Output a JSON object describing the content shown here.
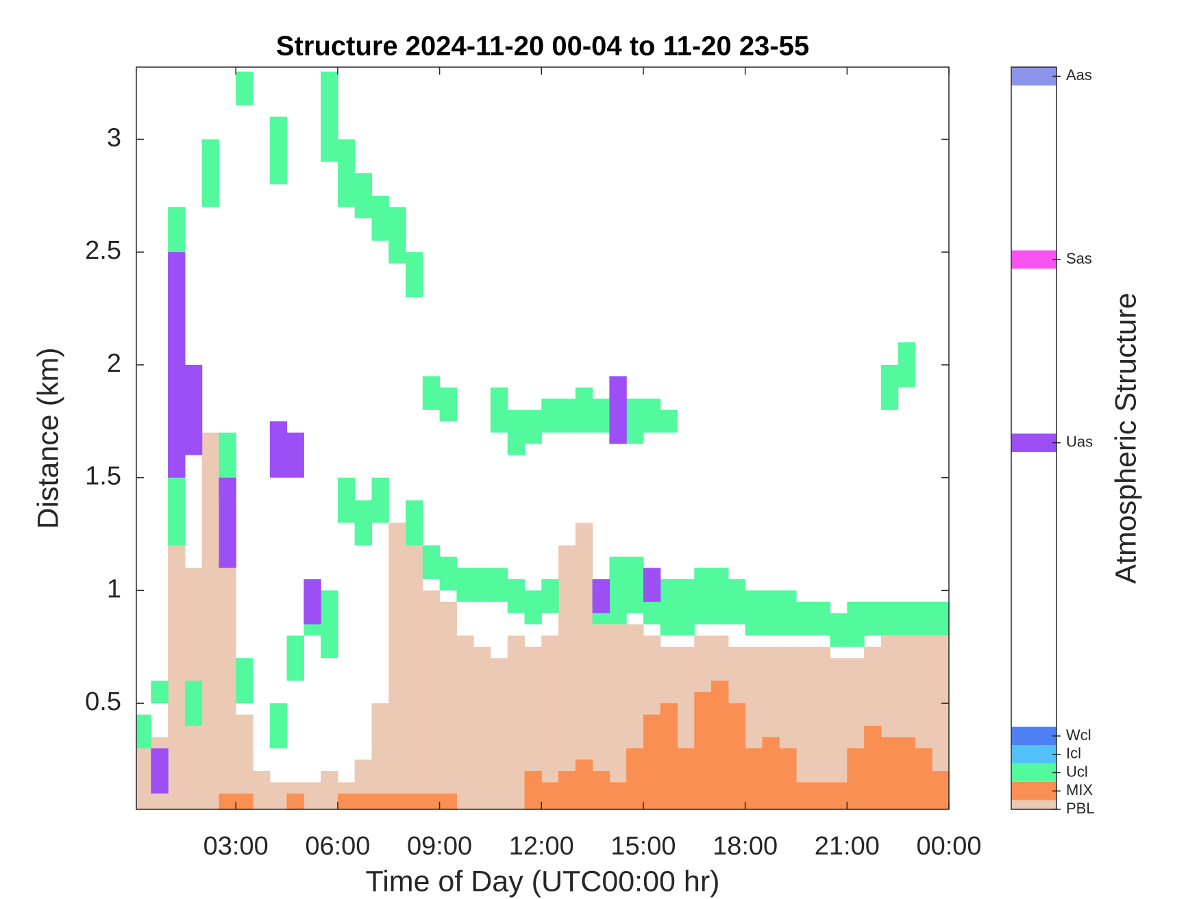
{
  "chart_data": {
    "type": "structure",
    "title": "Structure 2024-11-20 00-04 to 11-20 23-55",
    "xlabel": "Time of Day (UTC00:00 hr)",
    "ylabel": "Distance (km)",
    "colorbar_label": "Atmospheric Structure",
    "xlim": [
      0.07,
      24
    ],
    "ylim": [
      0.03,
      3.32
    ],
    "clim": [
      0,
      40.5
    ],
    "xticks": [
      {
        "value": 3,
        "label": "03:00"
      },
      {
        "value": 6,
        "label": "06:00"
      },
      {
        "value": 9,
        "label": "09:00"
      },
      {
        "value": 12,
        "label": "12:00"
      },
      {
        "value": 15,
        "label": "15:00"
      },
      {
        "value": 18,
        "label": "18:00"
      },
      {
        "value": 21,
        "label": "21:00"
      },
      {
        "value": 24,
        "label": "00:00"
      }
    ],
    "yticks": [
      0.5,
      1,
      1.5,
      2,
      2.5,
      3
    ],
    "x": [
      0.25,
      0.75,
      1.25,
      1.75,
      2.25,
      2.75,
      3.25,
      3.75,
      4.25,
      4.75,
      5.25,
      5.75,
      6.25,
      6.75,
      7.25,
      7.75,
      8.25,
      8.75,
      9.25,
      9.75,
      10.25,
      10.75,
      11.25,
      11.75,
      12.25,
      12.75,
      13.25,
      13.75,
      14.25,
      14.75,
      15.25,
      15.75,
      16.25,
      16.75,
      17.25,
      17.75,
      18.25,
      18.75,
      19.25,
      19.75,
      20.25,
      20.75,
      21.25,
      21.75,
      22.25,
      22.75,
      23.25,
      23.75
    ],
    "series": [
      {
        "name": "PBL",
        "color": "#ecc9b4",
        "level": 0,
        "layers": [
          {
            "values": [
              0.35,
              0.35,
              2.5,
              1.1,
              1.7,
              1.6,
              0.45,
              0.2,
              0.15,
              0.15,
              0.15,
              0.2,
              0.15,
              0.25,
              0.5,
              1.3,
              1.2,
              1.0,
              0.95,
              0.8,
              0.75,
              0.7,
              0.8,
              0.75,
              0.8,
              1.2,
              1.3,
              0.85,
              0.85,
              0.85,
              0.8,
              0.75,
              0.75,
              0.8,
              0.8,
              0.75,
              0.75,
              0.75,
              0.75,
              0.75,
              0.75,
              0.7,
              0.7,
              0.75,
              0.8,
              0.8,
              0.8,
              0.8
            ]
          }
        ]
      },
      {
        "name": "MIX",
        "color": "#f98f52",
        "level": 1,
        "layers": [
          {
            "values": [
              null,
              null,
              null,
              null,
              null,
              0.1,
              0.1,
              null,
              null,
              0.1,
              null,
              null,
              0.1,
              0.1,
              0.1,
              0.1,
              0.1,
              0.1,
              0.1,
              null,
              null,
              null,
              null,
              0.2,
              0.15,
              0.2,
              0.25,
              0.2,
              0.15,
              0.3,
              0.45,
              0.5,
              0.3,
              0.55,
              0.6,
              0.5,
              0.3,
              0.35,
              0.3,
              0.15,
              0.15,
              0.15,
              0.3,
              0.4,
              0.35,
              0.35,
              0.3,
              0.2
            ]
          }
        ]
      },
      {
        "name": "Ucl",
        "color": "#53f99d",
        "level": 2,
        "layers": [
          {
            "base": [
              0.3,
              0.5,
              1.2,
              0.4,
              null,
              1.4,
              0.5,
              null,
              0.3,
              0.6,
              0.8,
              0.7,
              1.3,
              1.2,
              1.3,
              null,
              1.2,
              1.05,
              1.0,
              0.95,
              0.95,
              0.95,
              0.9,
              0.85,
              0.9,
              null,
              null,
              0.85,
              0.85,
              0.9,
              0.85,
              0.8,
              0.8,
              0.85,
              0.85,
              0.85,
              0.8,
              0.8,
              0.8,
              0.8,
              0.8,
              0.75,
              0.75,
              0.8,
              0.8,
              0.8,
              0.8,
              0.8
            ],
            "values": [
              0.45,
              0.6,
              2.7,
              0.6,
              null,
              1.7,
              0.7,
              null,
              0.5,
              0.8,
              1.0,
              1.0,
              1.5,
              1.4,
              1.5,
              null,
              1.4,
              1.2,
              1.15,
              1.1,
              1.1,
              1.1,
              1.05,
              1.0,
              1.05,
              null,
              null,
              1.0,
              1.15,
              1.15,
              1.0,
              1.05,
              1.05,
              1.1,
              1.1,
              1.05,
              1.0,
              1.0,
              1.0,
              0.95,
              0.95,
              0.9,
              0.95,
              0.95,
              0.95,
              0.95,
              0.95,
              0.95
            ]
          },
          {
            "base": [
              null,
              null,
              null,
              null,
              2.7,
              null,
              3.15,
              null,
              2.8,
              null,
              null,
              2.9,
              2.7,
              2.65,
              2.55,
              2.45,
              2.3,
              1.8,
              1.75,
              null,
              null,
              1.7,
              1.6,
              1.65,
              1.7,
              1.7,
              1.7,
              1.7,
              1.65,
              1.65,
              1.7,
              1.7,
              null,
              null,
              null,
              null,
              null,
              null,
              null,
              null,
              null,
              null,
              null,
              null,
              1.8,
              1.9,
              null,
              null
            ],
            "values": [
              null,
              null,
              null,
              null,
              3.0,
              null,
              3.3,
              null,
              3.1,
              null,
              null,
              3.3,
              3.0,
              2.85,
              2.75,
              2.7,
              2.5,
              1.95,
              1.9,
              null,
              null,
              1.9,
              1.8,
              1.8,
              1.85,
              1.85,
              1.9,
              1.85,
              1.85,
              1.85,
              1.85,
              1.8,
              null,
              null,
              null,
              null,
              null,
              null,
              null,
              null,
              null,
              null,
              null,
              null,
              2.0,
              2.1,
              null,
              null
            ]
          }
        ]
      },
      {
        "name": "Icl",
        "color": "#53c1f9",
        "level": 3,
        "layers": []
      },
      {
        "name": "Wcl",
        "color": "#4f7ff5",
        "level": 4,
        "layers": []
      },
      {
        "name": "Uas",
        "color": "#9b4ff5",
        "level": 20,
        "layers": [
          {
            "base": [
              null,
              0.1,
              1.5,
              1.6,
              null,
              1.1,
              null,
              null,
              1.5,
              1.5,
              0.85,
              null,
              null,
              null,
              null,
              null,
              null,
              null,
              null,
              null,
              null,
              null,
              null,
              null,
              null,
              null,
              null,
              0.9,
              1.65,
              null,
              0.95,
              null,
              null,
              null,
              null,
              null,
              null,
              null,
              null,
              null,
              null,
              null,
              null,
              null,
              null,
              null,
              null,
              null
            ],
            "values": [
              null,
              0.3,
              2.5,
              2.0,
              null,
              1.5,
              null,
              null,
              1.75,
              1.7,
              1.05,
              null,
              null,
              null,
              null,
              null,
              null,
              null,
              null,
              null,
              null,
              null,
              null,
              null,
              null,
              null,
              null,
              1.05,
              1.95,
              null,
              1.1,
              null,
              null,
              null,
              null,
              null,
              null,
              null,
              null,
              null,
              null,
              null,
              null,
              null,
              null,
              null,
              null,
              null
            ]
          }
        ]
      },
      {
        "name": "Sas",
        "color": "#f853f0",
        "level": 30,
        "layers": []
      },
      {
        "name": "Aas",
        "color": "#8b96ea",
        "level": 40,
        "layers": []
      }
    ]
  }
}
